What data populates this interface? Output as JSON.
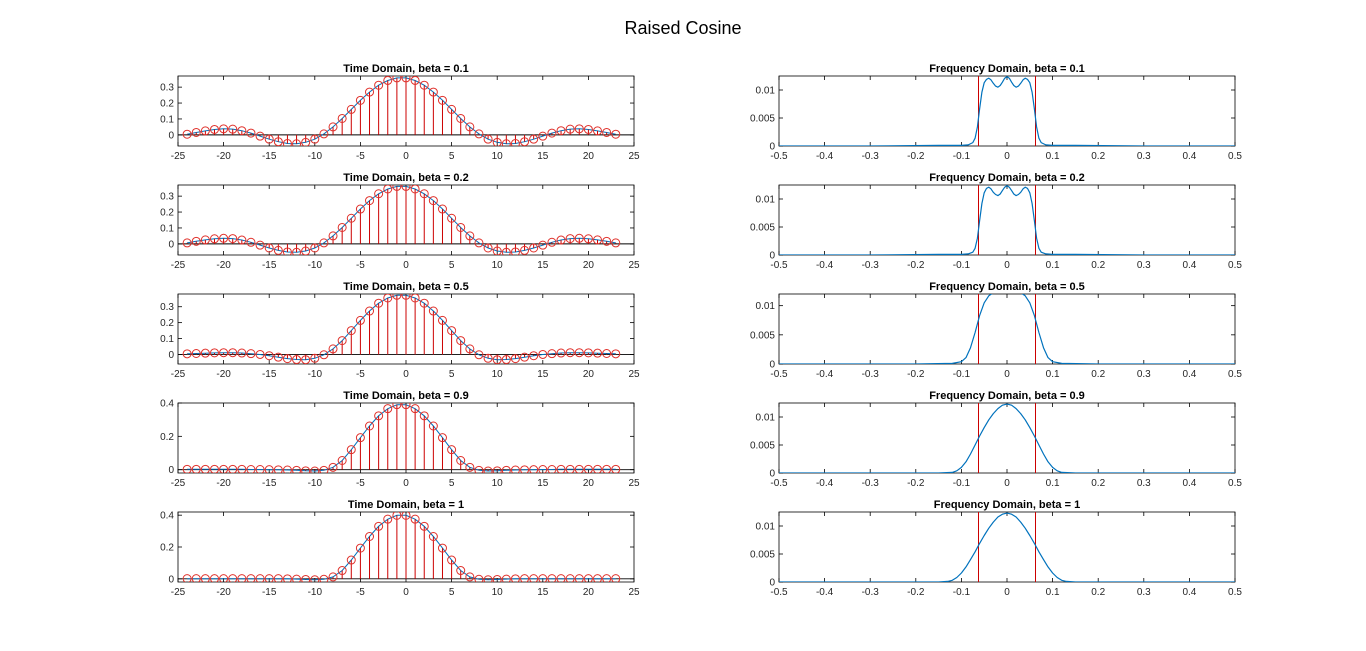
{
  "figure": {
    "title": "Raised Cosine"
  },
  "colors": {
    "stem": "#cc0000",
    "marker": "#e0302a",
    "curve": "#0072bd",
    "cutoff": "#cc0000",
    "axis": "#000000",
    "background": "#ffffff"
  },
  "chart_data": [
    {
      "type": "stem",
      "title": "Time Domain, beta = 0.1",
      "beta": 0.1,
      "column": "time",
      "xlabel": "",
      "ylabel": "",
      "xlim": [
        -25,
        25
      ],
      "ylim": [
        -0.07,
        0.37
      ],
      "xticks": [
        "-25",
        "-20",
        "-15",
        "-10",
        "-5",
        "0",
        "5",
        "10",
        "15",
        "20",
        "25"
      ],
      "yticks": [
        "0",
        "0.1",
        "0.2",
        "0.3"
      ],
      "grid": false,
      "x": [
        -24,
        -23,
        -22,
        -21,
        -20,
        -19,
        -18,
        -17,
        -16,
        -15,
        -14,
        -13,
        -12,
        -11,
        -10,
        -9,
        -8,
        -7,
        -6,
        -5,
        -4,
        -3,
        -2,
        -1,
        0,
        1,
        2,
        3,
        4,
        5,
        6,
        7,
        8,
        9,
        10,
        11,
        12,
        13,
        14,
        15,
        16,
        17,
        18,
        19,
        20,
        21,
        22,
        23
      ],
      "y": [
        0.004,
        0.015,
        0.025,
        0.034,
        0.038,
        0.036,
        0.026,
        0.011,
        -0.008,
        -0.027,
        -0.043,
        -0.054,
        -0.056,
        -0.047,
        -0.027,
        0.006,
        0.05,
        0.103,
        0.16,
        0.217,
        0.269,
        0.312,
        0.342,
        0.358,
        0.358,
        0.342,
        0.312,
        0.269,
        0.217,
        0.16,
        0.103,
        0.05,
        0.006,
        -0.027,
        -0.047,
        -0.056,
        -0.054,
        -0.043,
        -0.027,
        -0.008,
        0.011,
        0.026,
        0.036,
        0.038,
        0.034,
        0.025,
        0.015,
        0.004
      ]
    },
    {
      "type": "stem",
      "title": "Time Domain, beta = 0.2",
      "beta": 0.2,
      "column": "time",
      "xlabel": "",
      "ylabel": "",
      "xlim": [
        -25,
        25
      ],
      "ylim": [
        -0.07,
        0.37
      ],
      "xticks": [
        "-25",
        "-20",
        "-15",
        "-10",
        "-5",
        "0",
        "5",
        "10",
        "15",
        "20",
        "25"
      ],
      "yticks": [
        "0",
        "0.1",
        "0.2",
        "0.3"
      ],
      "grid": false,
      "x": [
        -24,
        -23,
        -22,
        -21,
        -20,
        -19,
        -18,
        -17,
        -16,
        -15,
        -14,
        -13,
        -12,
        -11,
        -10,
        -9,
        -8,
        -7,
        -6,
        -5,
        -4,
        -3,
        -2,
        -1,
        0,
        1,
        2,
        3,
        4,
        5,
        6,
        7,
        8,
        9,
        10,
        11,
        12,
        13,
        14,
        15,
        16,
        17,
        18,
        19,
        20,
        21,
        22,
        23
      ],
      "y": [
        0.006,
        0.016,
        0.025,
        0.032,
        0.035,
        0.033,
        0.024,
        0.01,
        -0.008,
        -0.026,
        -0.041,
        -0.051,
        -0.053,
        -0.045,
        -0.026,
        0.006,
        0.05,
        0.103,
        0.161,
        0.219,
        0.272,
        0.315,
        0.345,
        0.361,
        0.361,
        0.345,
        0.315,
        0.272,
        0.219,
        0.161,
        0.103,
        0.05,
        0.006,
        -0.026,
        -0.045,
        -0.053,
        -0.051,
        -0.041,
        -0.026,
        -0.008,
        0.01,
        0.024,
        0.033,
        0.035,
        0.032,
        0.025,
        0.016,
        0.006
      ]
    },
    {
      "type": "stem",
      "title": "Time Domain, beta = 0.5",
      "beta": 0.5,
      "column": "time",
      "xlabel": "",
      "ylabel": "",
      "xlim": [
        -25,
        25
      ],
      "ylim": [
        -0.06,
        0.38
      ],
      "xticks": [
        "-25",
        "-20",
        "-15",
        "-10",
        "-5",
        "0",
        "5",
        "10",
        "15",
        "20",
        "25"
      ],
      "yticks": [
        "0",
        "0.1",
        "0.2",
        "0.3"
      ],
      "grid": false,
      "x": [
        -24,
        -23,
        -22,
        -21,
        -20,
        -19,
        -18,
        -17,
        -16,
        -15,
        -14,
        -13,
        -12,
        -11,
        -10,
        -9,
        -8,
        -7,
        -6,
        -5,
        -4,
        -3,
        -2,
        -1,
        0,
        1,
        2,
        3,
        4,
        5,
        6,
        7,
        8,
        9,
        10,
        11,
        12,
        13,
        14,
        15,
        16,
        17,
        18,
        19,
        20,
        21,
        22,
        23
      ],
      "y": [
        0.004,
        0.006,
        0.008,
        0.01,
        0.011,
        0.011,
        0.009,
        0.005,
        0.0,
        -0.008,
        -0.017,
        -0.026,
        -0.032,
        -0.033,
        -0.024,
        -0.002,
        0.035,
        0.087,
        0.15,
        0.214,
        0.273,
        0.322,
        0.355,
        0.372,
        0.372,
        0.355,
        0.322,
        0.273,
        0.214,
        0.15,
        0.087,
        0.035,
        -0.002,
        -0.024,
        -0.033,
        -0.032,
        -0.026,
        -0.017,
        -0.008,
        0.0,
        0.005,
        0.009,
        0.011,
        0.011,
        0.01,
        0.008,
        0.006,
        0.004
      ]
    },
    {
      "type": "stem",
      "title": "Time Domain, beta = 0.9",
      "beta": 0.9,
      "column": "time",
      "xlabel": "",
      "ylabel": "",
      "xlim": [
        -25,
        25
      ],
      "ylim": [
        -0.02,
        0.4
      ],
      "xticks": [
        "-25",
        "-20",
        "-15",
        "-10",
        "-5",
        "0",
        "5",
        "10",
        "15",
        "20",
        "25"
      ],
      "yticks": [
        "0",
        "0.2",
        "0.4"
      ],
      "grid": false,
      "x": [
        -24,
        -23,
        -22,
        -21,
        -20,
        -19,
        -18,
        -17,
        -16,
        -15,
        -14,
        -13,
        -12,
        -11,
        -10,
        -9,
        -8,
        -7,
        -6,
        -5,
        -4,
        -3,
        -2,
        -1,
        0,
        1,
        2,
        3,
        4,
        5,
        6,
        7,
        8,
        9,
        10,
        11,
        12,
        13,
        14,
        15,
        16,
        17,
        18,
        19,
        20,
        21,
        22,
        23
      ],
      "y": [
        0.002,
        0.002,
        0.002,
        0.002,
        0.002,
        0.002,
        0.002,
        0.001,
        0.001,
        0.0,
        -0.001,
        -0.002,
        -0.004,
        -0.007,
        -0.008,
        -0.004,
        0.014,
        0.055,
        0.12,
        0.192,
        0.262,
        0.323,
        0.366,
        0.39,
        0.39,
        0.366,
        0.323,
        0.262,
        0.192,
        0.12,
        0.055,
        0.014,
        -0.004,
        -0.008,
        -0.007,
        -0.004,
        -0.002,
        -0.001,
        0.0,
        0.001,
        0.001,
        0.002,
        0.002,
        0.002,
        0.002,
        0.002,
        0.002,
        0.002
      ]
    },
    {
      "type": "stem",
      "title": "Time Domain, beta = 1",
      "beta": 1,
      "column": "time",
      "xlabel": "",
      "ylabel": "",
      "xlim": [
        -25,
        25
      ],
      "ylim": [
        -0.02,
        0.42
      ],
      "xticks": [
        "-25",
        "-20",
        "-15",
        "-10",
        "-5",
        "0",
        "5",
        "10",
        "15",
        "20",
        "25"
      ],
      "yticks": [
        "0",
        "0.2",
        "0.4"
      ],
      "grid": false,
      "x": [
        -24,
        -23,
        -22,
        -21,
        -20,
        -19,
        -18,
        -17,
        -16,
        -15,
        -14,
        -13,
        -12,
        -11,
        -10,
        -9,
        -8,
        -7,
        -6,
        -5,
        -4,
        -3,
        -2,
        -1,
        0,
        1,
        2,
        3,
        4,
        5,
        6,
        7,
        8,
        9,
        10,
        11,
        12,
        13,
        14,
        15,
        16,
        17,
        18,
        19,
        20,
        21,
        22,
        23
      ],
      "y": [
        0.001,
        0.001,
        0.001,
        0.001,
        0.001,
        0.001,
        0.001,
        0.001,
        0.001,
        0.001,
        0.001,
        0.0,
        -0.002,
        -0.004,
        -0.006,
        -0.003,
        0.012,
        0.052,
        0.118,
        0.193,
        0.266,
        0.33,
        0.375,
        0.399,
        0.399,
        0.375,
        0.33,
        0.266,
        0.193,
        0.118,
        0.052,
        0.012,
        -0.003,
        -0.006,
        -0.004,
        -0.002,
        0.0,
        0.001,
        0.001,
        0.001,
        0.001,
        0.001,
        0.001,
        0.001,
        0.001,
        0.001,
        0.001,
        0.001
      ]
    },
    {
      "type": "line",
      "title": "Frequency Domain, beta = 0.1",
      "beta": 0.1,
      "column": "freq",
      "xlabel": "",
      "ylabel": "",
      "xlim": [
        -0.5,
        0.5
      ],
      "ylim": [
        0,
        0.0125
      ],
      "xticks": [
        "-0.5",
        "-0.4",
        "-0.3",
        "-0.2",
        "-0.1",
        "0",
        "0.1",
        "0.2",
        "0.3",
        "0.4",
        "0.5"
      ],
      "yticks": [
        "0",
        "0.005",
        "0.01"
      ],
      "grid": false,
      "cutoff_lines": [
        -0.0625,
        0.0625
      ],
      "x": [
        -0.5,
        -0.3,
        -0.15,
        -0.1,
        -0.085,
        -0.075,
        -0.07,
        -0.065,
        -0.06,
        -0.055,
        -0.05,
        -0.045,
        -0.04,
        -0.035,
        -0.03,
        -0.025,
        -0.02,
        -0.015,
        -0.01,
        -0.005,
        0,
        0.005,
        0.01,
        0.015,
        0.02,
        0.025,
        0.03,
        0.035,
        0.04,
        0.045,
        0.05,
        0.055,
        0.06,
        0.065,
        0.07,
        0.075,
        0.085,
        0.1,
        0.15,
        0.3,
        0.5
      ],
      "y": [
        0.0,
        0.0,
        0.0001,
        0.0001,
        0.0002,
        0.0006,
        0.0014,
        0.0034,
        0.0066,
        0.0096,
        0.0113,
        0.0119,
        0.0121,
        0.0118,
        0.0112,
        0.0107,
        0.0105,
        0.0108,
        0.0114,
        0.0121,
        0.0124,
        0.0121,
        0.0114,
        0.0108,
        0.0105,
        0.0107,
        0.0112,
        0.0118,
        0.0121,
        0.0119,
        0.0113,
        0.0096,
        0.0066,
        0.0034,
        0.0014,
        0.0006,
        0.0002,
        0.0001,
        0.0001,
        0.0,
        0.0
      ]
    },
    {
      "type": "line",
      "title": "Frequency Domain, beta = 0.2",
      "beta": 0.2,
      "column": "freq",
      "xlabel": "",
      "ylabel": "",
      "xlim": [
        -0.5,
        0.5
      ],
      "ylim": [
        0,
        0.0125
      ],
      "xticks": [
        "-0.5",
        "-0.4",
        "-0.3",
        "-0.2",
        "-0.1",
        "0",
        "0.1",
        "0.2",
        "0.3",
        "0.4",
        "0.5"
      ],
      "yticks": [
        "0",
        "0.005",
        "0.01"
      ],
      "grid": false,
      "cutoff_lines": [
        -0.0625,
        0.0625
      ],
      "x": [
        -0.5,
        -0.3,
        -0.15,
        -0.1,
        -0.085,
        -0.075,
        -0.07,
        -0.065,
        -0.06,
        -0.055,
        -0.05,
        -0.045,
        -0.04,
        -0.035,
        -0.03,
        -0.025,
        -0.02,
        -0.015,
        -0.01,
        -0.005,
        0,
        0.005,
        0.01,
        0.015,
        0.02,
        0.025,
        0.03,
        0.035,
        0.04,
        0.045,
        0.05,
        0.055,
        0.06,
        0.065,
        0.07,
        0.075,
        0.085,
        0.1,
        0.15,
        0.3,
        0.5
      ],
      "y": [
        0.0,
        0.0,
        0.0001,
        0.0001,
        0.0002,
        0.0005,
        0.0012,
        0.003,
        0.0061,
        0.0092,
        0.0111,
        0.0119,
        0.0121,
        0.0118,
        0.0112,
        0.0108,
        0.0106,
        0.0109,
        0.0115,
        0.0121,
        0.0124,
        0.0121,
        0.0115,
        0.0109,
        0.0106,
        0.0108,
        0.0112,
        0.0118,
        0.0121,
        0.0119,
        0.0111,
        0.0092,
        0.0061,
        0.003,
        0.0012,
        0.0005,
        0.0002,
        0.0001,
        0.0001,
        0.0,
        0.0
      ]
    },
    {
      "type": "line",
      "title": "Frequency Domain, beta = 0.5",
      "beta": 0.5,
      "column": "freq",
      "xlabel": "",
      "ylabel": "",
      "xlim": [
        -0.5,
        0.5
      ],
      "ylim": [
        0,
        0.012
      ],
      "xticks": [
        "-0.5",
        "-0.4",
        "-0.3",
        "-0.2",
        "-0.1",
        "0",
        "0.1",
        "0.2",
        "0.3",
        "0.4",
        "0.5"
      ],
      "yticks": [
        "0",
        "0.005",
        "0.01"
      ],
      "grid": false,
      "cutoff_lines": [
        -0.0625,
        0.0625
      ],
      "x": [
        -0.5,
        -0.2,
        -0.12,
        -0.1,
        -0.09,
        -0.08,
        -0.07,
        -0.06,
        -0.05,
        -0.04,
        -0.03,
        -0.02,
        -0.01,
        0,
        0.01,
        0.02,
        0.03,
        0.04,
        0.05,
        0.06,
        0.07,
        0.08,
        0.09,
        0.1,
        0.12,
        0.2,
        0.5
      ],
      "y": [
        0.0,
        0.0,
        0.0001,
        0.0004,
        0.0011,
        0.0028,
        0.0054,
        0.0083,
        0.0105,
        0.0117,
        0.0122,
        0.0123,
        0.0123,
        0.0124,
        0.0123,
        0.0123,
        0.0122,
        0.0117,
        0.0105,
        0.0083,
        0.0054,
        0.0028,
        0.0011,
        0.0004,
        0.0001,
        0.0,
        0.0
      ]
    },
    {
      "type": "line",
      "title": "Frequency Domain, beta = 0.9",
      "beta": 0.9,
      "column": "freq",
      "xlabel": "",
      "ylabel": "",
      "xlim": [
        -0.5,
        0.5
      ],
      "ylim": [
        0,
        0.0125
      ],
      "xticks": [
        "-0.5",
        "-0.4",
        "-0.3",
        "-0.2",
        "-0.1",
        "0",
        "0.1",
        "0.2",
        "0.3",
        "0.4",
        "0.5"
      ],
      "yticks": [
        "0",
        "0.005",
        "0.01"
      ],
      "grid": false,
      "cutoff_lines": [
        -0.0625,
        0.0625
      ],
      "x": [
        -0.5,
        -0.15,
        -0.12,
        -0.11,
        -0.1,
        -0.09,
        -0.08,
        -0.07,
        -0.06,
        -0.05,
        -0.04,
        -0.03,
        -0.02,
        -0.01,
        0,
        0.01,
        0.02,
        0.03,
        0.04,
        0.05,
        0.06,
        0.07,
        0.08,
        0.09,
        0.1,
        0.11,
        0.12,
        0.15,
        0.5
      ],
      "y": [
        0.0,
        0.0,
        0.0001,
        0.0004,
        0.001,
        0.002,
        0.0034,
        0.005,
        0.0066,
        0.0081,
        0.0095,
        0.0106,
        0.0115,
        0.0121,
        0.0123,
        0.0121,
        0.0115,
        0.0106,
        0.0095,
        0.0081,
        0.0066,
        0.005,
        0.0034,
        0.002,
        0.001,
        0.0004,
        0.0001,
        0.0,
        0.0
      ]
    },
    {
      "type": "line",
      "title": "Frequency Domain, beta = 1",
      "beta": 1,
      "column": "freq",
      "xlabel": "",
      "ylabel": "",
      "xlim": [
        -0.5,
        0.5
      ],
      "ylim": [
        0,
        0.0125
      ],
      "xticks": [
        "-0.5",
        "-0.4",
        "-0.3",
        "-0.2",
        "-0.1",
        "0",
        "0.1",
        "0.2",
        "0.3",
        "0.4",
        "0.5"
      ],
      "yticks": [
        "0",
        "0.005",
        "0.01"
      ],
      "grid": false,
      "cutoff_lines": [
        -0.0625,
        0.0625
      ],
      "x": [
        -0.5,
        -0.15,
        -0.13,
        -0.12,
        -0.11,
        -0.1,
        -0.09,
        -0.08,
        -0.07,
        -0.06,
        -0.05,
        -0.04,
        -0.03,
        -0.02,
        -0.01,
        0,
        0.01,
        0.02,
        0.03,
        0.04,
        0.05,
        0.06,
        0.07,
        0.08,
        0.09,
        0.1,
        0.11,
        0.12,
        0.13,
        0.15,
        0.5
      ],
      "y": [
        0.0,
        0.0,
        0.0001,
        0.0003,
        0.0008,
        0.0016,
        0.0027,
        0.004,
        0.0054,
        0.0069,
        0.0083,
        0.0096,
        0.0107,
        0.0116,
        0.0121,
        0.0123,
        0.0121,
        0.0116,
        0.0107,
        0.0096,
        0.0083,
        0.0069,
        0.0054,
        0.004,
        0.0027,
        0.0016,
        0.0008,
        0.0003,
        0.0001,
        0.0,
        0.0
      ]
    }
  ]
}
